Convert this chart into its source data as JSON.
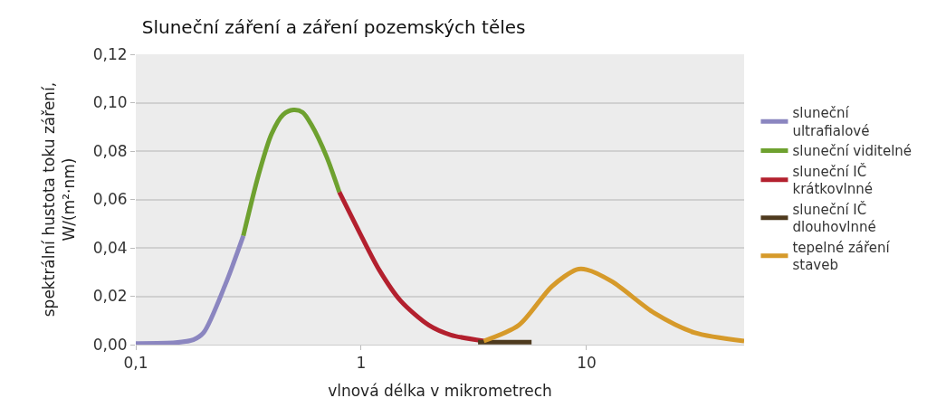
{
  "chart_data": {
    "type": "line",
    "title": "Sluneční záření a záření pozemských těles",
    "xlabel": "vlnová délka v mikrometrech",
    "ylabel": "spektrální hustota toku záření,\nW/(m²·nm)",
    "log": "x",
    "xlim": [
      0.1,
      50
    ],
    "xticks": [
      {
        "value": 0.1,
        "label": "0,1"
      },
      1,
      10
    ],
    "ylim": [
      0,
      0.12
    ],
    "yticks": [
      {
        "value": 0,
        "label": "0,00"
      },
      {
        "value": 0.02,
        "label": "0,02"
      },
      {
        "value": 0.04,
        "label": "0,04"
      },
      {
        "value": 0.06,
        "label": "0,06"
      },
      {
        "value": 0.08,
        "label": "0,08"
      },
      {
        "value": 0.1,
        "label": "0,10"
      },
      {
        "value": 0.12,
        "label": "0,12"
      }
    ],
    "grid": "y",
    "legend": "right",
    "marker": "none",
    "line_style": "solid",
    "series": [
      {
        "name": "sluneční ultrafialové",
        "color": "#8b86c0",
        "x": [
          0.1,
          0.15,
          0.18,
          0.2,
          0.25,
          0.3
        ],
        "values": [
          0.0005,
          0.0008,
          0.002,
          0.005,
          0.025,
          0.045
        ]
      },
      {
        "name": "sluneční viditelné",
        "color": "#6ea12f",
        "x": [
          0.3,
          0.35,
          0.4,
          0.45,
          0.5,
          0.55,
          0.6,
          0.7,
          0.8
        ],
        "values": [
          0.045,
          0.07,
          0.087,
          0.095,
          0.097,
          0.096,
          0.091,
          0.078,
          0.063
        ]
      },
      {
        "name": "sluneční IČ krátkovlnné",
        "color": "#b3202e",
        "x": [
          0.8,
          1,
          1.2,
          1.5,
          2,
          2.5,
          3.5
        ],
        "values": [
          0.063,
          0.045,
          0.031,
          0.018,
          0.008,
          0.004,
          0.0015
        ]
      },
      {
        "name": "sluneční IČ dlouhovlnné",
        "color": "#4e3a1e",
        "x": [
          3.3,
          5.7
        ],
        "values": [
          0.001,
          0.001
        ]
      },
      {
        "name": "tepelné záření staveb",
        "color": "#d69a2a",
        "x": [
          3.5,
          5,
          7,
          9,
          10,
          13,
          20,
          30,
          50
        ],
        "values": [
          0.0015,
          0.008,
          0.024,
          0.031,
          0.031,
          0.026,
          0.013,
          0.005,
          0.0015
        ]
      }
    ]
  }
}
